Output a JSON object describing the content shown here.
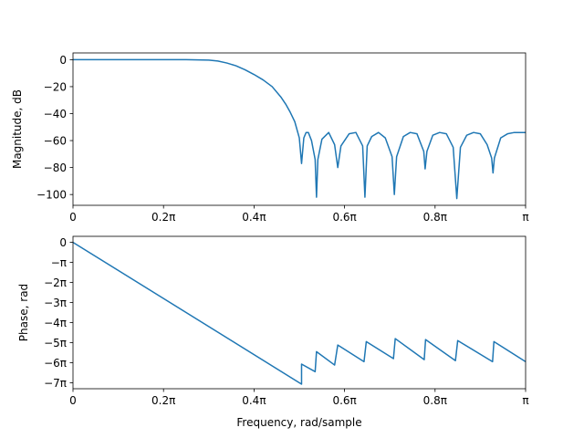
{
  "chart_data": [
    {
      "type": "line",
      "xlabel": "",
      "ylabel": "Magnitude, dB",
      "xlim": [
        0,
        1
      ],
      "ylim": [
        -108,
        5
      ],
      "x_unit": "pi",
      "xticks": [
        0,
        0.2,
        0.4,
        0.6,
        0.8,
        1.0
      ],
      "xtick_labels": [
        "0",
        "0.2π",
        "0.4π",
        "0.6π",
        "0.8π",
        "π"
      ],
      "yticks": [
        0,
        -20,
        -40,
        -60,
        -80,
        -100
      ],
      "ytick_labels": [
        "0",
        "−20",
        "−40",
        "−60",
        "−80",
        "−100"
      ],
      "color": "#1f77b4",
      "grid": false,
      "series": [
        {
          "x": [
            0,
            0.05,
            0.1,
            0.15,
            0.2,
            0.25,
            0.3,
            0.32,
            0.34,
            0.36,
            0.38,
            0.4,
            0.42,
            0.44,
            0.46,
            0.47,
            0.48,
            0.49,
            0.5,
            0.505,
            0.51,
            0.515,
            0.52,
            0.527,
            0.535,
            0.538,
            0.541,
            0.55,
            0.565,
            0.578,
            0.585,
            0.592,
            0.61,
            0.625,
            0.64,
            0.645,
            0.65,
            0.66,
            0.675,
            0.69,
            0.705,
            0.71,
            0.715,
            0.73,
            0.745,
            0.76,
            0.775,
            0.778,
            0.782,
            0.795,
            0.81,
            0.825,
            0.84,
            0.848,
            0.856,
            0.87,
            0.885,
            0.9,
            0.915,
            0.925,
            0.928,
            0.931,
            0.945,
            0.96,
            0.975,
            0.99,
            1.0
          ],
          "y": [
            0,
            0,
            0,
            0,
            0,
            0,
            -0.3,
            -1,
            -2.5,
            -4.5,
            -7.5,
            -11,
            -15,
            -20,
            -28,
            -33,
            -39,
            -46,
            -58,
            -77,
            -58,
            -54,
            -54,
            -60,
            -74,
            -102,
            -74,
            -59,
            -54,
            -63,
            -80,
            -64,
            -55,
            -54,
            -64,
            -102,
            -64,
            -57,
            -54,
            -58,
            -72,
            -100,
            -72,
            -57,
            -54,
            -55,
            -68,
            -81,
            -68,
            -56,
            -54,
            -55,
            -65,
            -103,
            -65,
            -56,
            -54,
            -55,
            -63,
            -73,
            -84,
            -73,
            -58,
            -55,
            -54,
            -54,
            -54
          ]
        }
      ]
    },
    {
      "type": "line",
      "xlabel": "Frequency, rad/sample",
      "ylabel": "Phase, rad",
      "xlim": [
        0,
        1
      ],
      "ylim": [
        -7.3,
        0.3
      ],
      "x_unit": "pi",
      "y_unit": "pi",
      "xticks": [
        0,
        0.2,
        0.4,
        0.6,
        0.8,
        1.0
      ],
      "xtick_labels": [
        "0",
        "0.2π",
        "0.4π",
        "0.6π",
        "0.8π",
        "π"
      ],
      "yticks": [
        0,
        -1,
        -2,
        -3,
        -4,
        -5,
        -6,
        -7
      ],
      "ytick_labels": [
        "0",
        "−π",
        "−2π",
        "−3π",
        "−4π",
        "−5π",
        "−6π",
        "−7π"
      ],
      "color": "#1f77b4",
      "grid": false,
      "series": [
        {
          "x": [
            0,
            0.505,
            0.505,
            0.535,
            0.538,
            0.578,
            0.585,
            0.643,
            0.648,
            0.708,
            0.712,
            0.776,
            0.779,
            0.845,
            0.85,
            0.927,
            0.93,
            1.0
          ],
          "y": [
            0,
            -7.07,
            -6.07,
            -6.45,
            -5.45,
            -6.12,
            -5.12,
            -5.95,
            -4.95,
            -5.8,
            -4.8,
            -5.85,
            -4.85,
            -5.9,
            -4.9,
            -5.95,
            -4.95,
            -5.95
          ]
        }
      ]
    }
  ]
}
